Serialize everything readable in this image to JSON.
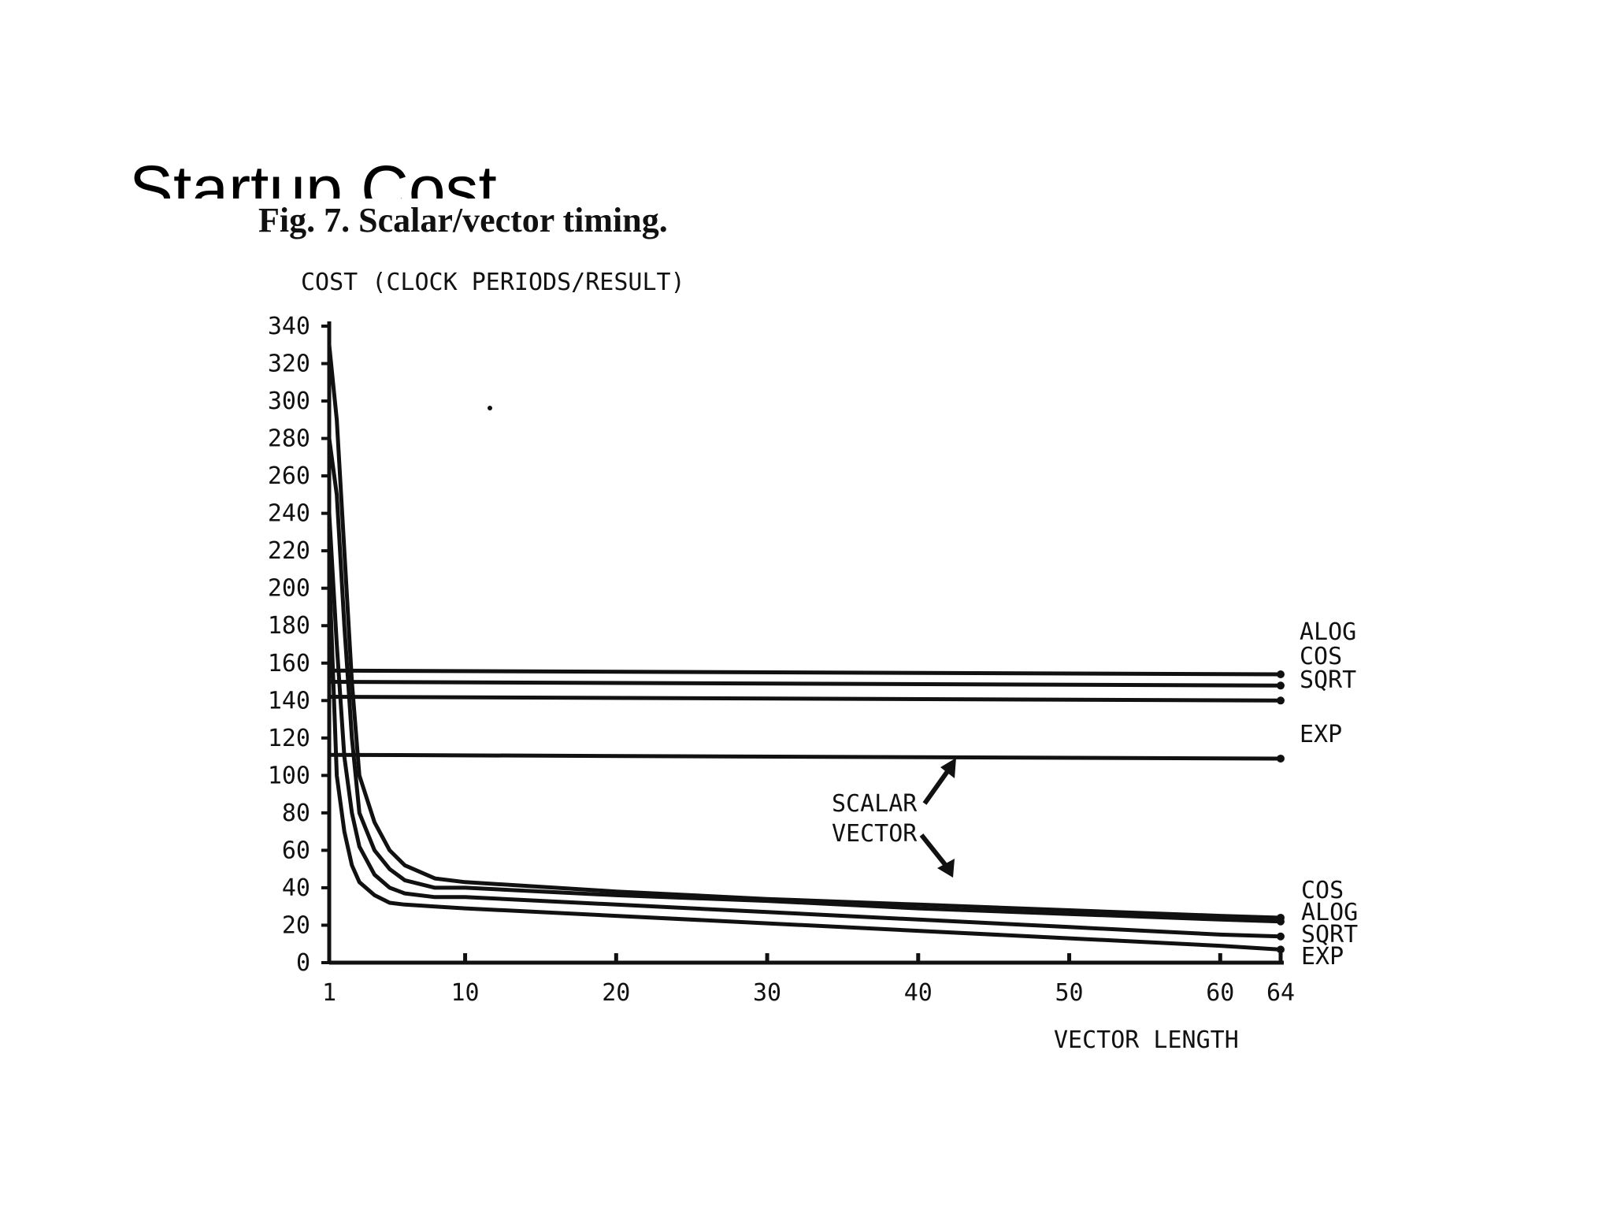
{
  "slide": {
    "title": "Startup Cost"
  },
  "chart_data": {
    "type": "line",
    "title": "Fig. 7.  Scalar/vector timing.",
    "ylabel": "COST (CLOCK PERIODS/RESULT)",
    "xlabel": "VECTOR LENGTH",
    "xlim": [
      1,
      64
    ],
    "ylim": [
      0,
      340
    ],
    "x_ticks": [
      1,
      10,
      20,
      30,
      40,
      50,
      60,
      64
    ],
    "y_ticks": [
      0,
      20,
      40,
      60,
      80,
      100,
      120,
      140,
      160,
      180,
      200,
      220,
      240,
      260,
      280,
      300,
      320,
      340
    ],
    "grid": false,
    "series": [
      {
        "name": "ALOG",
        "group": "scalar",
        "x": [
          1,
          64
        ],
        "y": [
          156,
          154
        ]
      },
      {
        "name": "COS",
        "group": "scalar",
        "x": [
          1,
          64
        ],
        "y": [
          150,
          148
        ]
      },
      {
        "name": "SQRT",
        "group": "scalar",
        "x": [
          1,
          64
        ],
        "y": [
          142,
          140
        ]
      },
      {
        "name": "EXP",
        "group": "scalar",
        "x": [
          1,
          64
        ],
        "y": [
          111,
          109
        ]
      },
      {
        "name": "COS",
        "group": "vector",
        "x": [
          1,
          1.5,
          2,
          2.5,
          3,
          4,
          5,
          6,
          8,
          10,
          20,
          30,
          40,
          50,
          60,
          64
        ],
        "y": [
          330,
          290,
          220,
          150,
          100,
          75,
          60,
          52,
          45,
          43,
          38,
          34,
          31,
          28,
          25,
          24
        ]
      },
      {
        "name": "ALOG",
        "group": "vector",
        "x": [
          1,
          1.5,
          2,
          2.5,
          3,
          4,
          5,
          6,
          8,
          10,
          20,
          30,
          40,
          50,
          60,
          64
        ],
        "y": [
          280,
          250,
          180,
          120,
          80,
          60,
          50,
          44,
          40,
          40,
          36,
          33,
          29,
          26,
          23,
          22
        ]
      },
      {
        "name": "SQRT",
        "group": "vector",
        "x": [
          1,
          1.5,
          2,
          2.5,
          3,
          4,
          5,
          6,
          8,
          10,
          20,
          30,
          40,
          50,
          60,
          64
        ],
        "y": [
          240,
          170,
          110,
          80,
          62,
          47,
          40,
          37,
          35,
          35,
          31,
          27,
          23,
          19,
          15,
          14
        ]
      },
      {
        "name": "EXP",
        "group": "vector",
        "x": [
          1,
          1.5,
          2,
          2.5,
          3,
          4,
          5,
          6,
          8,
          10,
          20,
          30,
          40,
          50,
          60,
          64
        ],
        "y": [
          210,
          100,
          70,
          52,
          43,
          36,
          32,
          31,
          30,
          29,
          25,
          21,
          17,
          13,
          9,
          7
        ]
      }
    ],
    "right_labels_scalar": [
      "ALOG",
      "COS",
      "SQRT",
      "EXP"
    ],
    "right_labels_vector": [
      "COS",
      "ALOG",
      "SQRT",
      "EXP"
    ],
    "annotations": {
      "scalar": "SCALAR",
      "vector": "VECTOR"
    }
  }
}
